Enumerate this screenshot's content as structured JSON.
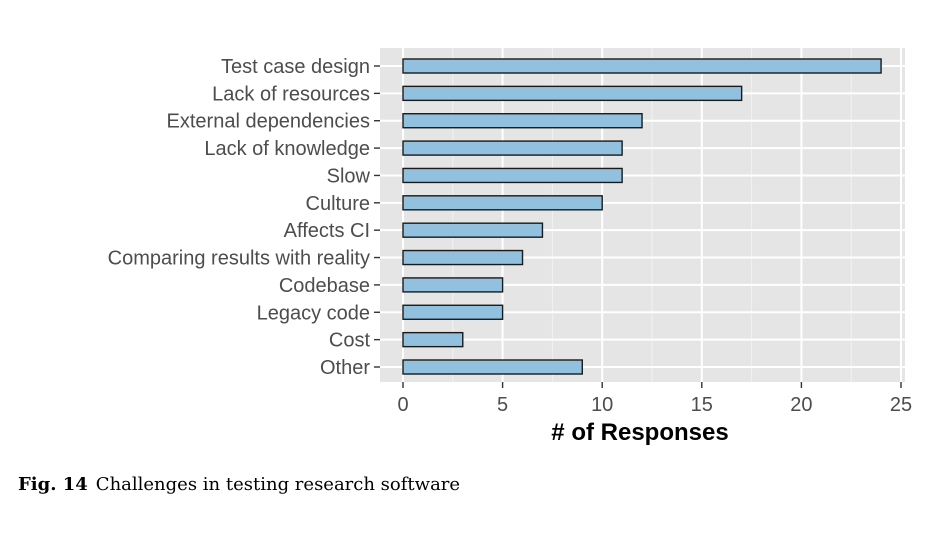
{
  "chart_data": {
    "type": "bar",
    "orientation": "horizontal",
    "categories": [
      "Test case design",
      "Lack of resources",
      "External dependencies",
      "Lack of knowledge",
      "Slow",
      "Culture",
      "Affects CI",
      "Comparing results with reality",
      "Codebase",
      "Legacy code",
      "Cost",
      "Other"
    ],
    "values": [
      24,
      17,
      12,
      11,
      11,
      10,
      7,
      6,
      5,
      5,
      3,
      9
    ],
    "xlabel": "# of Responses",
    "ylabel": "",
    "xlim": [
      0,
      25
    ],
    "xticks": [
      0,
      5,
      10,
      15,
      20,
      25
    ],
    "grid": true,
    "bar_color": "#92c0df",
    "bar_edge_color": "#1a1a1a",
    "panel_color": "#e5e5e5",
    "legend": "none"
  },
  "caption": {
    "label": "Fig. 14",
    "text": "Challenges in testing research software"
  }
}
